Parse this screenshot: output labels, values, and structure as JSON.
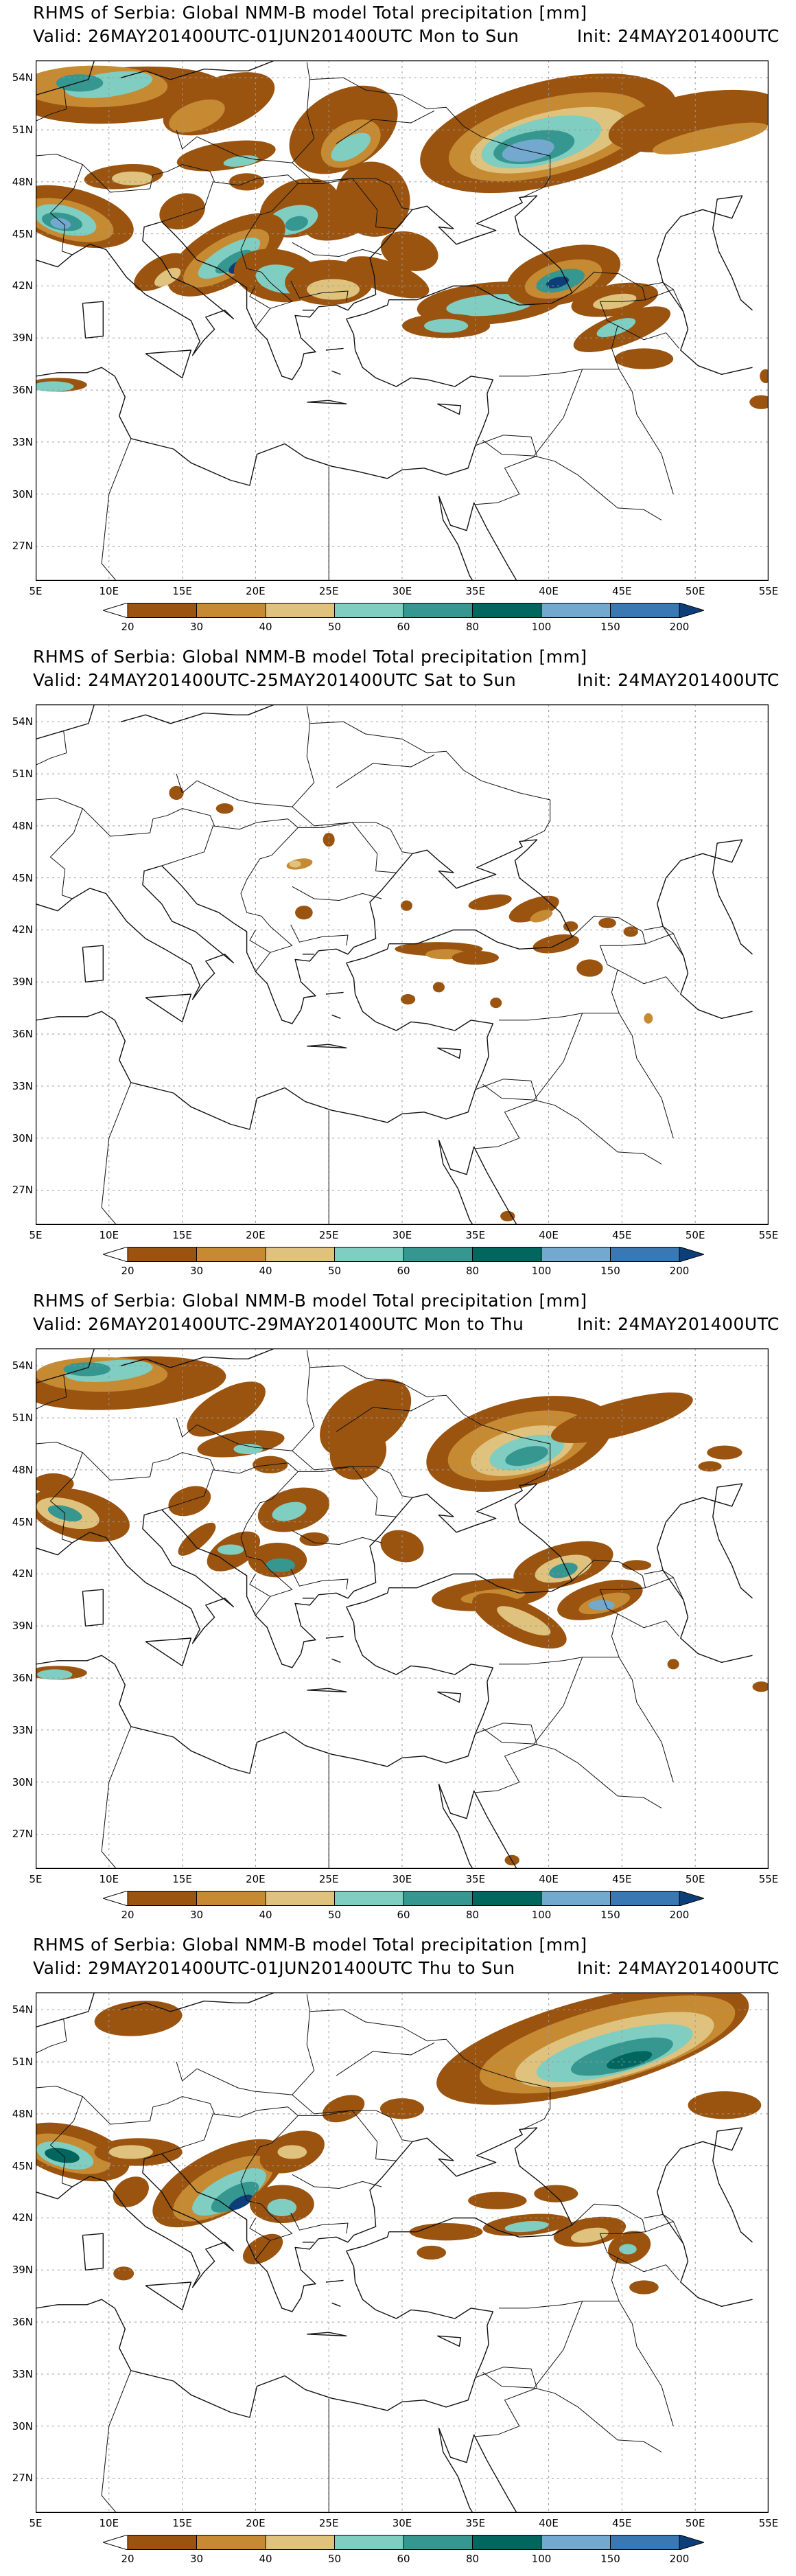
{
  "colors": {
    "c20": "#9a5410",
    "c30": "#c68a33",
    "c40": "#dfc27d",
    "c50": "#80cdc1",
    "c60": "#35978f",
    "c80": "#01665e",
    "c100": "#74a9cf",
    "c150": "#3a78b4",
    "c200": "#0c3f7a"
  },
  "legend": {
    "labels": [
      "20",
      "30",
      "40",
      "50",
      "60",
      "80",
      "100",
      "150",
      "200"
    ]
  },
  "axes": {
    "x_ticks": [
      "5E",
      "10E",
      "15E",
      "20E",
      "25E",
      "30E",
      "35E",
      "40E",
      "45E",
      "50E",
      "55E"
    ],
    "y_ticks": [
      "54N",
      "51N",
      "48N",
      "45N",
      "42N",
      "39N",
      "36N",
      "33N",
      "30N",
      "27N"
    ]
  },
  "panels": [
    {
      "title": "RHMS of Serbia: Global NMM-B model Total precipitation [mm]",
      "valid": "Valid: 26MAY201400UTC-01JUN201400UTC Mon to Sun",
      "init": "Init: 24MAY201400UTC"
    },
    {
      "title": "RHMS of Serbia: Global NMM-B model Total precipitation [mm]",
      "valid": "Valid: 24MAY201400UTC-25MAY201400UTC Sat to Sun",
      "init": "Init: 24MAY201400UTC"
    },
    {
      "title": "RHMS of Serbia: Global NMM-B model Total precipitation [mm]",
      "valid": "Valid: 26MAY201400UTC-29MAY201400UTC Mon to Thu",
      "init": "Init: 24MAY201400UTC"
    },
    {
      "title": "RHMS of Serbia: Global NMM-B model Total precipitation [mm]",
      "valid": "Valid: 29MAY201400UTC-01JUN201400UTC Thu to Sun",
      "init": "Init: 24MAY201400UTC"
    }
  ]
}
